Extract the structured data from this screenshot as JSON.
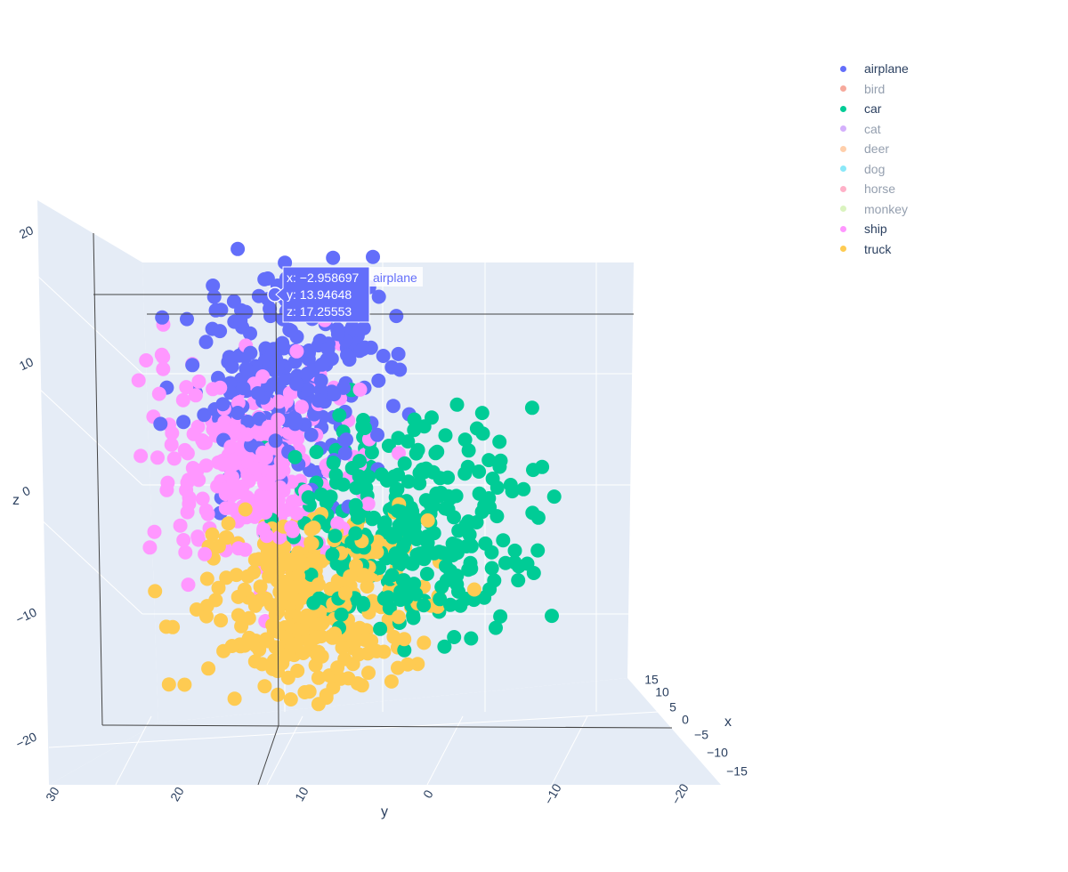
{
  "chart_data": {
    "type": "scatter",
    "dimensions": 3,
    "title": "",
    "axes": {
      "x": {
        "label": "x",
        "ticks": [
          "15",
          "10",
          "5",
          "0",
          "−5",
          "−10",
          "−15"
        ]
      },
      "y": {
        "label": "y",
        "ticks": [
          "30",
          "20",
          "10",
          "0",
          "−10",
          "−20"
        ]
      },
      "z": {
        "label": "z",
        "ticks": [
          "20",
          "10",
          "0",
          "−10",
          "−20"
        ]
      }
    },
    "grid": true,
    "legend_placement": "top-right",
    "series": [
      {
        "name": "airplane",
        "color": "#636efa",
        "visible": true
      },
      {
        "name": "bird",
        "color": "#ef553b",
        "visible": false
      },
      {
        "name": "car",
        "color": "#00cc96",
        "visible": true
      },
      {
        "name": "cat",
        "color": "#ab63fa",
        "visible": false
      },
      {
        "name": "deer",
        "color": "#ffa15a",
        "visible": false
      },
      {
        "name": "dog",
        "color": "#19d3f3",
        "visible": false
      },
      {
        "name": "horse",
        "color": "#ff6692",
        "visible": false
      },
      {
        "name": "monkey",
        "color": "#b6e880",
        "visible": false
      },
      {
        "name": "ship",
        "color": "#ff97ff",
        "visible": true
      },
      {
        "name": "truck",
        "color": "#fecb52",
        "visible": true
      }
    ],
    "hover": {
      "series": "airplane",
      "x_text": "x: −2.958697",
      "y_text": "y: 13.94648",
      "z_text": "z: 17.25553",
      "x": -2.958697,
      "y": 13.94648,
      "z": 17.25553
    }
  },
  "colors": {
    "scene_background": "#e5ecf6",
    "grid": "#ffffff",
    "font": "#2a3f5f"
  }
}
